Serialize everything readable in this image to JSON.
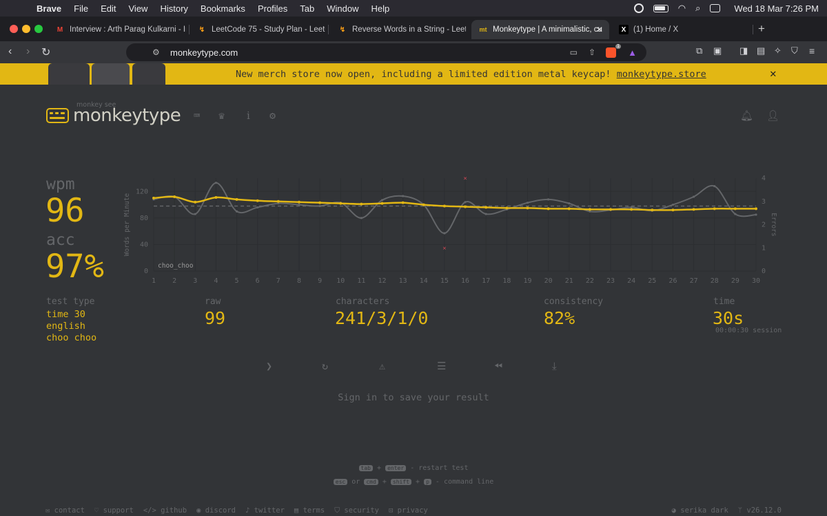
{
  "menubar": {
    "app": "Brave",
    "items": [
      "File",
      "Edit",
      "View",
      "History",
      "Bookmarks",
      "Profiles",
      "Tab",
      "Window",
      "Help"
    ],
    "clock": "Wed 18 Mar  7:26 PM"
  },
  "tabs": [
    {
      "title": "Interview : Arth Parag Kulkarni - Int",
      "icon": "gmail-icon"
    },
    {
      "title": "LeetCode 75 - Study Plan - LeetCo",
      "icon": "leetcode-icon"
    },
    {
      "title": "Reverse Words in a String - LeetCo",
      "icon": "leetcode-icon"
    },
    {
      "title": "Monkeytype | A minimalistic, cu",
      "icon": "monkeytype-icon",
      "active": true
    },
    {
      "title": "(1) Home / X",
      "icon": "x-icon"
    }
  ],
  "toolbar": {
    "url": "monkeytype.com",
    "brave_badge": "1"
  },
  "banner": {
    "message": "New merch store now open, including a limited edition metal keycap! ",
    "link": "monkeytype.store"
  },
  "logo": {
    "tagline": "monkey see",
    "name": "monkeytype"
  },
  "result": {
    "wpm_label": "wpm",
    "wpm": "96",
    "acc_label": "acc",
    "acc": "97%",
    "test_type_label": "test type",
    "test_type": [
      "time 30",
      "english",
      "choo choo"
    ],
    "raw_label": "raw",
    "raw": "99",
    "characters_label": "characters",
    "characters": "241/3/1/0",
    "consistency_label": "consistency",
    "consistency": "82%",
    "time_label": "time",
    "time": "30s",
    "session": "00:00:30 session"
  },
  "chart_data": {
    "type": "line",
    "ylabel": "Words per Minute",
    "y2label": "Errors",
    "annotation": "choo_choo",
    "x": [
      1,
      2,
      3,
      4,
      5,
      6,
      7,
      8,
      9,
      10,
      11,
      12,
      13,
      14,
      15,
      16,
      17,
      18,
      19,
      20,
      21,
      22,
      23,
      24,
      25,
      26,
      27,
      28,
      29,
      30
    ],
    "ylim": [
      0,
      140
    ],
    "yticks": [
      0,
      40,
      80,
      120
    ],
    "y2lim": [
      0,
      4
    ],
    "y2ticks": [
      0,
      1,
      2,
      3,
      4
    ],
    "series": [
      {
        "values": [
          110,
          112,
          104,
          111,
          108,
          106,
          105,
          104,
          103,
          102,
          101,
          102,
          103,
          100,
          98,
          97,
          96,
          95,
          95,
          94,
          94,
          93,
          93,
          93,
          92,
          92,
          93,
          94,
          94,
          94
        ]
      },
      {
        "values": [
          108,
          112,
          86,
          133,
          90,
          96,
          102,
          100,
          98,
          103,
          80,
          107,
          113,
          100,
          57,
          104,
          86,
          93,
          103,
          108,
          102,
          90,
          92,
          96,
          91,
          100,
          112,
          128,
          86,
          85
        ]
      },
      {
        "values": [
          98,
          98,
          98,
          98,
          98,
          98,
          98,
          98,
          98,
          98,
          98,
          98,
          98,
          98,
          98,
          98,
          98,
          98,
          98,
          98,
          98,
          98,
          98,
          98,
          98,
          98,
          98,
          98,
          98,
          98
        ]
      },
      {
        "values_errors": [
          [
            15,
            1
          ],
          [
            16,
            4
          ]
        ]
      }
    ],
    "grid": true
  },
  "actions": [
    "next-test",
    "restart-test",
    "report",
    "word-history",
    "replay",
    "save-screenshot"
  ],
  "signin": "Sign in to save your result",
  "hints": {
    "line1": {
      "k1": "tab",
      "plus": "+",
      "k2": "enter",
      "text": "- restart test"
    },
    "line2": {
      "k1": "esc",
      "or": "or",
      "k2": "cmd",
      "plus1": "+",
      "k3": "shift",
      "plus2": "+",
      "k4": "p",
      "text": "- command line"
    }
  },
  "footer": {
    "left": [
      "contact",
      "support",
      "github",
      "discord",
      "twitter",
      "terms",
      "security",
      "privacy"
    ],
    "theme": "serika dark",
    "version": "v26.12.0"
  },
  "colors": {
    "accent": "#e2b714",
    "bg": "#323437",
    "sub": "#646669",
    "text": "#d1d0c5",
    "error": "#ca4754"
  }
}
